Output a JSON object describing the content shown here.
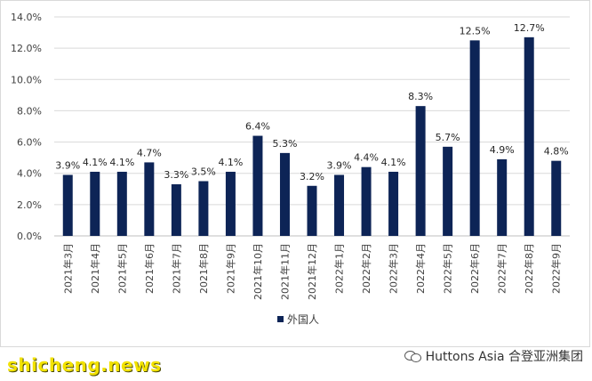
{
  "chart_data": {
    "type": "bar",
    "categories": [
      "2021年3月",
      "2021年4月",
      "2021年5月",
      "2021年6月",
      "2021年7月",
      "2021年8月",
      "2021年9月",
      "2021年10月",
      "2021年11月",
      "2021年12月",
      "2022年1月",
      "2022年2月",
      "2022年3月",
      "2022年4月",
      "2022年5月",
      "2022年6月",
      "2022年7月",
      "2022年8月",
      "2022年9月"
    ],
    "series": [
      {
        "name": "外国人",
        "values": [
          3.9,
          4.1,
          4.1,
          4.7,
          3.3,
          3.5,
          4.1,
          6.4,
          5.3,
          3.2,
          3.9,
          4.4,
          4.1,
          8.3,
          5.7,
          12.5,
          4.9,
          12.7,
          4.8
        ],
        "labels": [
          "3.9%",
          "4.1%",
          "4.1%",
          "4.7%",
          "3.3%",
          "3.5%",
          "4.1%",
          "6.4%",
          "5.3%",
          "3.2%",
          "3.9%",
          "4.4%",
          "4.1%",
          "8.3%",
          "5.7%",
          "12.5%",
          "4.9%",
          "12.7%",
          "4.8%"
        ]
      }
    ],
    "yticks": [
      "0.0%",
      "2.0%",
      "4.0%",
      "6.0%",
      "8.0%",
      "10.0%",
      "12.0%",
      "14.0%"
    ],
    "ylim": [
      0,
      14
    ],
    "ytick_step": 2,
    "grid": true,
    "legend_position": "bottom",
    "colors": {
      "bar": "#0d2456",
      "grid": "#d9d9d9",
      "axis": "#bfbfbf"
    }
  },
  "watermarks": {
    "left": "shicheng.news",
    "right": "Huttons Asia 合登亚洲集团",
    "right_icon": "wechat-icon"
  }
}
